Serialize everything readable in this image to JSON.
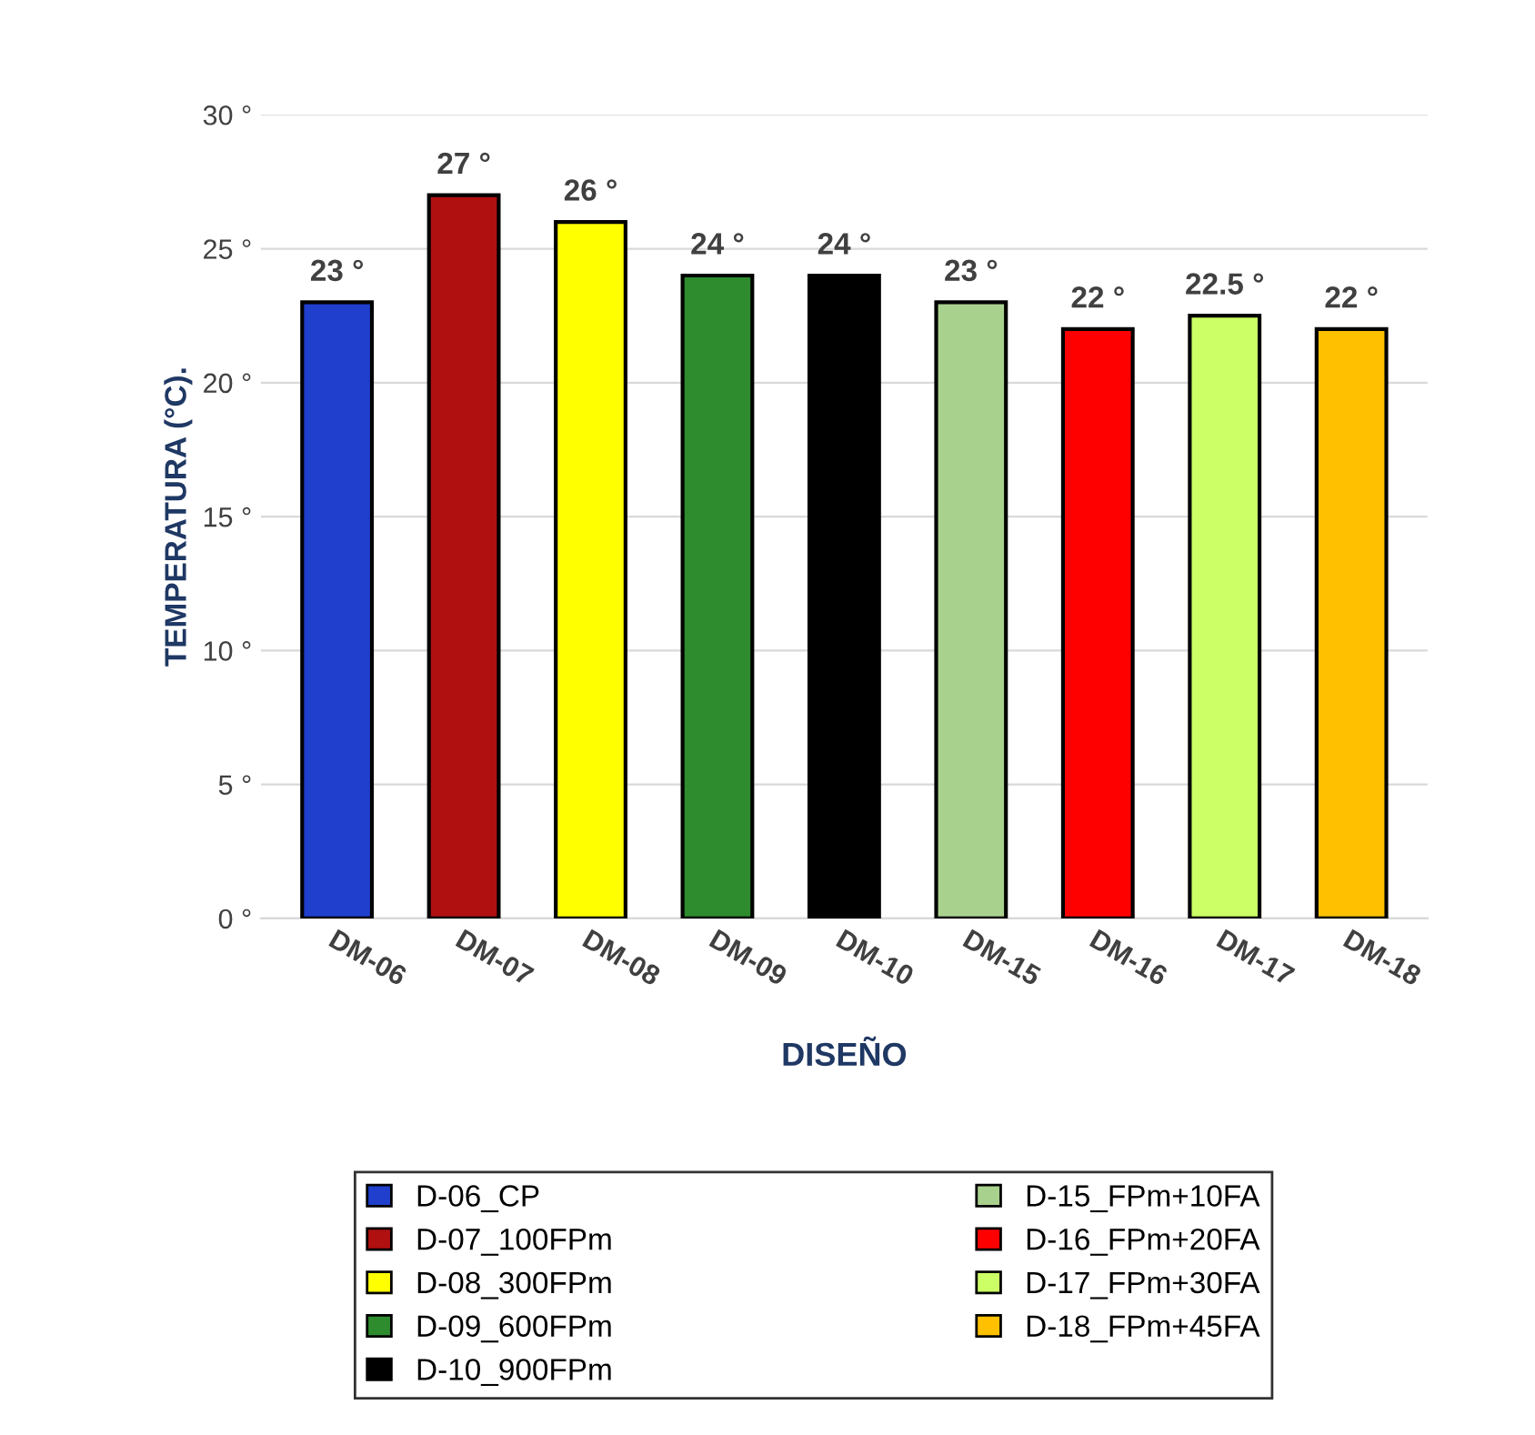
{
  "chart_data": {
    "type": "bar",
    "xlabel": "DISEÑO",
    "ylabel": "TEMPERATURA (°C).",
    "categories": [
      "DM-06",
      "DM-07",
      "DM-08",
      "DM-09",
      "DM-10",
      "DM-15",
      "DM-16",
      "DM-17",
      "DM-18"
    ],
    "series": [
      {
        "name": "D-06_CP",
        "color": "#1f3fcc",
        "values": [
          23,
          null,
          null,
          null,
          null,
          null,
          null,
          null,
          null
        ],
        "value_labels": [
          "23 °",
          null,
          null,
          null,
          null,
          null,
          null,
          null,
          null
        ]
      },
      {
        "name": "D-07_100FPm",
        "color": "#b01010",
        "values": [
          null,
          27,
          null,
          null,
          null,
          null,
          null,
          null,
          null
        ],
        "value_labels": [
          null,
          "27 °",
          null,
          null,
          null,
          null,
          null,
          null,
          null
        ]
      },
      {
        "name": "D-08_300FPm",
        "color": "#ffff00",
        "values": [
          null,
          null,
          26,
          null,
          null,
          null,
          null,
          null,
          null
        ],
        "value_labels": [
          null,
          null,
          "26 °",
          null,
          null,
          null,
          null,
          null,
          null
        ]
      },
      {
        "name": "D-09_600FPm",
        "color": "#2e8b2e",
        "values": [
          null,
          null,
          null,
          24,
          null,
          null,
          null,
          null,
          null
        ],
        "value_labels": [
          null,
          null,
          null,
          "24 °",
          null,
          null,
          null,
          null,
          null
        ]
      },
      {
        "name": "D-10_900FPm",
        "color": "#000000",
        "values": [
          null,
          null,
          null,
          null,
          24,
          null,
          null,
          null,
          null
        ],
        "value_labels": [
          null,
          null,
          null,
          null,
          "24 °",
          null,
          null,
          null,
          null
        ]
      },
      {
        "name": "D-15_FPm+10FA",
        "color": "#a9d18e",
        "values": [
          null,
          null,
          null,
          null,
          null,
          23,
          null,
          null,
          null
        ],
        "value_labels": [
          null,
          null,
          null,
          null,
          null,
          "23 °",
          null,
          null,
          null
        ]
      },
      {
        "name": "D-16_FPm+20FA",
        "color": "#ff0000",
        "values": [
          null,
          null,
          null,
          null,
          null,
          null,
          22,
          null,
          null
        ],
        "value_labels": [
          null,
          null,
          null,
          null,
          null,
          null,
          "22 °",
          null,
          null
        ]
      },
      {
        "name": "D-17_FPm+30FA",
        "color": "#ccff66",
        "values": [
          null,
          null,
          null,
          null,
          null,
          null,
          null,
          22.5,
          null
        ],
        "value_labels": [
          null,
          null,
          null,
          null,
          null,
          null,
          null,
          "22.5 °",
          null
        ]
      },
      {
        "name": "D-18_FPm+45FA",
        "color": "#ffc000",
        "values": [
          null,
          null,
          null,
          null,
          null,
          null,
          null,
          null,
          22
        ],
        "value_labels": [
          null,
          null,
          null,
          null,
          null,
          null,
          null,
          null,
          "22 °"
        ]
      }
    ],
    "ylim": [
      0,
      30
    ],
    "yticks": [
      {
        "value": 0,
        "label": "0 °"
      },
      {
        "value": 5,
        "label": "5 °"
      },
      {
        "value": 10,
        "label": "10 °"
      },
      {
        "value": 15,
        "label": "15 °"
      },
      {
        "value": 20,
        "label": "20 °"
      },
      {
        "value": 25,
        "label": "25 °"
      },
      {
        "value": 30,
        "label": "30 °"
      }
    ],
    "grid": "y",
    "legend": "bottom"
  }
}
